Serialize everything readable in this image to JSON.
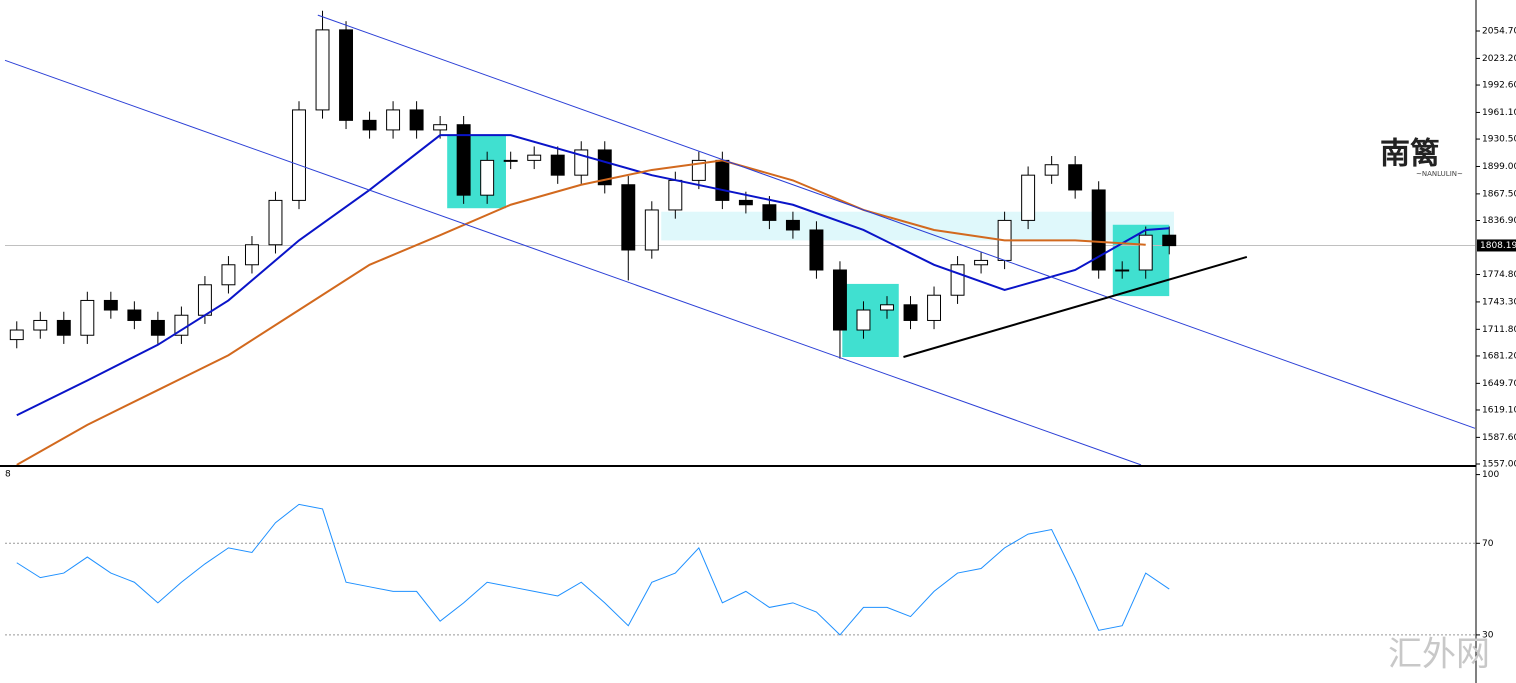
{
  "chart_data": [
    {
      "type": "candlestick",
      "xlim": [
        -0.5,
        62
      ],
      "ylim": [
        1554.7,
        2084.6
      ],
      "yticks": [
        {
          "value": 1557,
          "label": "1557.00"
        },
        {
          "value": 1587.6,
          "label": "1587.60"
        },
        {
          "value": 1619.1,
          "label": "1619.10"
        },
        {
          "value": 1649.7,
          "label": "1649.70"
        },
        {
          "value": 1681.2,
          "label": "1681.20"
        },
        {
          "value": 1711.8,
          "label": "1711.80"
        },
        {
          "value": 1743.3,
          "label": "1743.30"
        },
        {
          "value": 1774.8,
          "label": "1774.80"
        },
        {
          "value": 1836.9,
          "label": "1836.90"
        },
        {
          "value": 1867.5,
          "label": "1867.50"
        },
        {
          "value": 1899,
          "label": "1899.00"
        },
        {
          "value": 1930.5,
          "label": "1930.50"
        },
        {
          "value": 1961.1,
          "label": "1961.10"
        },
        {
          "value": 1992.6,
          "label": "1992.60"
        },
        {
          "value": 2023.2,
          "label": "2023.20"
        },
        {
          "value": 2054.7,
          "label": "2054.70"
        }
      ],
      "current_price": {
        "value": 1808.19,
        "label": "1808.19"
      },
      "x": [
        0,
        1,
        2,
        3,
        4,
        5,
        6,
        7,
        8,
        9,
        10,
        11,
        12,
        13,
        14,
        15,
        16,
        17,
        18,
        19,
        20,
        21,
        22,
        23,
        24,
        25,
        26,
        27,
        28,
        29,
        30,
        31,
        32,
        33,
        34,
        35,
        36,
        37,
        38,
        39,
        40,
        41,
        42,
        43,
        44,
        45,
        46,
        47,
        48,
        49
      ],
      "open": [
        1700,
        1711,
        1722,
        1705,
        1745,
        1734,
        1722,
        1705,
        1728,
        1763,
        1786,
        1809,
        1860,
        1964,
        2056,
        1952,
        1941,
        1964,
        1941,
        1947,
        1866,
        1906,
        1906,
        1912,
        1889,
        1918,
        1878,
        1803,
        1849,
        1883,
        1906,
        1860,
        1855,
        1837,
        1826,
        1780,
        1711,
        1734,
        1740,
        1722,
        1751,
        1786,
        1791,
        1837,
        1889,
        1901,
        1872,
        1780,
        1780,
        1820
      ],
      "high": [
        1721,
        1732,
        1732,
        1755,
        1755,
        1744,
        1732,
        1738,
        1773,
        1796,
        1819,
        1870,
        1974,
        2078,
        2066,
        1962,
        1974,
        1974,
        1957,
        1957,
        1916,
        1916,
        1922,
        1922,
        1928,
        1928,
        1888,
        1859,
        1893,
        1916,
        1916,
        1870,
        1865,
        1847,
        1836,
        1790,
        1744,
        1750,
        1750,
        1761,
        1796,
        1801,
        1847,
        1899,
        1911,
        1911,
        1882,
        1790,
        1830,
        1830
      ],
      "low": [
        1690,
        1701,
        1695,
        1695,
        1724,
        1712,
        1695,
        1695,
        1718,
        1753,
        1776,
        1799,
        1850,
        1954,
        1942,
        1931,
        1931,
        1931,
        1931,
        1856,
        1856,
        1896,
        1896,
        1879,
        1879,
        1868,
        1768,
        1793,
        1839,
        1873,
        1850,
        1845,
        1827,
        1816,
        1770,
        1678,
        1701,
        1724,
        1712,
        1712,
        1741,
        1776,
        1781,
        1827,
        1879,
        1862,
        1770,
        1770,
        1770,
        1798
      ],
      "close": [
        1711,
        1722,
        1705,
        1745,
        1734,
        1722,
        1705,
        1728,
        1763,
        1786,
        1809,
        1860,
        1964,
        2056,
        1952,
        1941,
        1964,
        1941,
        1947,
        1866,
        1906,
        1906,
        1912,
        1889,
        1918,
        1878,
        1803,
        1849,
        1883,
        1906,
        1860,
        1855,
        1837,
        1826,
        1780,
        1711,
        1734,
        1740,
        1722,
        1751,
        1786,
        1791,
        1837,
        1889,
        1901,
        1872,
        1780,
        1780,
        1820,
        1808
      ],
      "series": [
        {
          "color": "#0a14c8",
          "x": [
            0,
            3,
            6,
            9,
            12,
            15,
            18,
            21,
            24,
            27,
            30,
            33,
            36,
            39,
            42,
            45,
            48,
            49
          ],
          "values": [
            1613,
            1653,
            1694,
            1745,
            1814,
            1872,
            1935,
            1935,
            1912,
            1889,
            1872,
            1855,
            1826,
            1786,
            1757,
            1780,
            1826,
            1828
          ]
        },
        {
          "color": "#d2691e",
          "x": [
            0,
            3,
            6,
            9,
            12,
            15,
            18,
            21,
            24,
            27,
            30,
            33,
            36,
            39,
            42,
            45,
            48
          ],
          "values": [
            1556,
            1602,
            1642,
            1682,
            1734,
            1786,
            1820,
            1855,
            1878,
            1895,
            1906,
            1883,
            1849,
            1826,
            1814,
            1814,
            1809
          ]
        }
      ],
      "trendlines": [
        {
          "color": "#2b3fd6",
          "x": [
            12.8,
            62.0
          ],
          "y": [
            2073,
            1598
          ]
        },
        {
          "color": "#2b3fd6",
          "x": [
            -0.5,
            47.8
          ],
          "y": [
            2021,
            1556
          ]
        },
        {
          "color": "#000000",
          "x": [
            37.7,
            52.3
          ],
          "y": [
            1680,
            1795
          ]
        }
      ],
      "zones": [
        {
          "color": "#dff8fb",
          "x": [
            27.4,
            49.2
          ],
          "y": [
            1847,
            1814
          ]
        },
        {
          "color": "#40e0d0",
          "x": [
            18.3,
            20.8
          ],
          "y": [
            1935,
            1851
          ]
        },
        {
          "color": "#40e0d0",
          "x": [
            35.1,
            37.5
          ],
          "y": [
            1764,
            1680
          ]
        },
        {
          "color": "#40e0d0",
          "x": [
            46.6,
            49.0
          ],
          "y": [
            1832,
            1750
          ]
        }
      ]
    },
    {
      "type": "line",
      "title": "8",
      "xlim": [
        -0.5,
        62
      ],
      "ylim": [
        9,
        102
      ],
      "yticks": [
        30,
        70,
        100
      ],
      "levels": [
        30,
        70
      ],
      "color": "#1e90ff",
      "x": [
        0,
        1,
        2,
        3,
        4,
        5,
        6,
        7,
        8,
        9,
        10,
        11,
        12,
        13,
        14,
        15,
        16,
        17,
        18,
        19,
        20,
        21,
        22,
        23,
        24,
        25,
        26,
        27,
        28,
        29,
        30,
        31,
        32,
        33,
        34,
        35,
        36,
        37,
        38,
        39,
        40,
        41,
        42,
        43,
        44,
        45,
        46,
        47,
        48,
        49
      ],
      "values": [
        61.5,
        55,
        57,
        64,
        57,
        53,
        44,
        53,
        61,
        68,
        66,
        79,
        87,
        85,
        53,
        51,
        49,
        49,
        36,
        44,
        53,
        51,
        49,
        47,
        53,
        44,
        34,
        53,
        57,
        68,
        44,
        49,
        42,
        44,
        40,
        30,
        42,
        42,
        38,
        49,
        57,
        59,
        68,
        74,
        76,
        55,
        32,
        34,
        57,
        50
      ]
    }
  ],
  "watermark": {
    "logo": "南篱",
    "logo_sub": "~NANLULIN~",
    "site": "汇外网"
  }
}
